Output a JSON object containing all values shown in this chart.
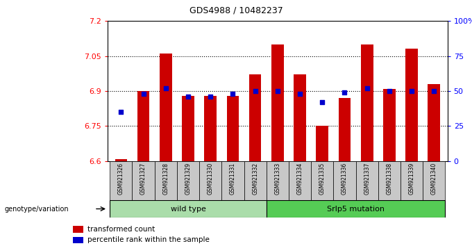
{
  "title": "GDS4988 / 10482237",
  "samples": [
    "GSM921326",
    "GSM921327",
    "GSM921328",
    "GSM921329",
    "GSM921330",
    "GSM921331",
    "GSM921332",
    "GSM921333",
    "GSM921334",
    "GSM921335",
    "GSM921336",
    "GSM921337",
    "GSM921338",
    "GSM921339",
    "GSM921340"
  ],
  "bar_values": [
    6.61,
    6.9,
    7.06,
    6.88,
    6.88,
    6.88,
    6.97,
    7.1,
    6.97,
    6.75,
    6.87,
    7.1,
    6.91,
    7.08,
    6.93
  ],
  "dot_values": [
    35,
    48,
    52,
    46,
    46,
    48,
    50,
    50,
    48,
    42,
    49,
    52,
    50,
    50,
    50
  ],
  "bar_color": "#cc0000",
  "dot_color": "#0000cc",
  "ylim_left": [
    6.6,
    7.2
  ],
  "ylim_right": [
    0,
    100
  ],
  "yticks_left": [
    6.6,
    6.75,
    6.9,
    7.05,
    7.2
  ],
  "ytick_labels_left": [
    "6.6",
    "6.75",
    "6.9",
    "7.05",
    "7.2"
  ],
  "yticks_right": [
    0,
    25,
    50,
    75,
    100
  ],
  "ytick_labels_right": [
    "0",
    "25",
    "50",
    "75",
    "100%"
  ],
  "hlines": [
    6.75,
    6.9,
    7.05
  ],
  "wild_type_count": 7,
  "group1_label": "wild type",
  "group2_label": "Srlp5 mutation",
  "group1_color": "#aaddaa",
  "group2_color": "#55cc55",
  "legend_bar_label": "transformed count",
  "legend_dot_label": "percentile rank within the sample",
  "genotype_label": "genotype/variation",
  "xticklabel_bg": "#c8c8c8"
}
